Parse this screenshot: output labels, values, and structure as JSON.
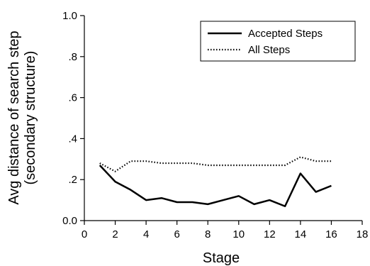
{
  "chart_data": {
    "type": "line",
    "xlabel": "Stage",
    "ylabel_lines": [
      "Avg distance of search step",
      "(secondary structure)"
    ],
    "xlim": [
      0,
      18
    ],
    "ylim": [
      0.0,
      1.0
    ],
    "xticks": [
      0,
      2,
      4,
      6,
      8,
      10,
      12,
      14,
      16,
      18
    ],
    "xtick_labels": [
      "0",
      "2",
      "4",
      "6",
      "8",
      "10",
      "12",
      "14",
      "16",
      "18"
    ],
    "yticks": [
      0.0,
      0.2,
      0.4,
      0.6,
      0.8,
      1.0
    ],
    "ytick_labels": [
      "0.0",
      ".2",
      ".4",
      ".6",
      ".8",
      "1.0"
    ],
    "grid": false,
    "legend_position": "top-right",
    "x": [
      1,
      2,
      3,
      4,
      5,
      6,
      7,
      8,
      9,
      10,
      11,
      12,
      13,
      14,
      15,
      16
    ],
    "series": [
      {
        "name": "Accepted Steps",
        "style": "solid",
        "color": "#000000",
        "values": [
          0.27,
          0.19,
          0.15,
          0.1,
          0.11,
          0.09,
          0.09,
          0.08,
          0.1,
          0.12,
          0.08,
          0.1,
          0.07,
          0.23,
          0.14,
          0.17
        ]
      },
      {
        "name": "All Steps",
        "style": "dotted",
        "color": "#000000",
        "values": [
          0.28,
          0.24,
          0.29,
          0.29,
          0.28,
          0.28,
          0.28,
          0.27,
          0.27,
          0.27,
          0.27,
          0.27,
          0.27,
          0.31,
          0.29,
          0.29
        ]
      }
    ]
  }
}
